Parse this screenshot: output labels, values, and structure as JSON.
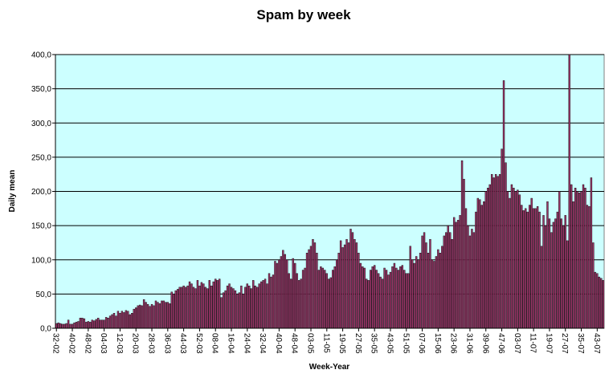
{
  "chart_data": {
    "type": "bar",
    "title": "Spam by week",
    "xlabel": "Week-Year",
    "ylabel": "Daily mean",
    "categories": [
      "32-02",
      null,
      null,
      null,
      null,
      null,
      null,
      null,
      "40-02",
      null,
      null,
      null,
      null,
      null,
      null,
      null,
      "48-02",
      null,
      null,
      null,
      null,
      null,
      null,
      null,
      "04-03",
      null,
      null,
      null,
      null,
      null,
      null,
      null,
      "12-03",
      null,
      null,
      null,
      null,
      null,
      null,
      null,
      "20-03",
      null,
      null,
      null,
      null,
      null,
      null,
      null,
      "28-03",
      null,
      null,
      null,
      null,
      null,
      null,
      null,
      "36-03",
      null,
      null,
      null,
      null,
      null,
      null,
      null,
      "44-03",
      null,
      null,
      null,
      null,
      null,
      null,
      null,
      "52-03",
      null,
      null,
      null,
      null,
      null,
      null,
      null,
      "08-04",
      null,
      null,
      null,
      null,
      null,
      null,
      null,
      "16-04",
      null,
      null,
      null,
      null,
      null,
      null,
      null,
      "24-04",
      null,
      null,
      null,
      null,
      null,
      null,
      null,
      "32-04",
      null,
      null,
      null,
      null,
      null,
      null,
      null,
      "40-04",
      null,
      null,
      null,
      null,
      null,
      null,
      null,
      "48-04",
      null,
      null,
      null,
      null,
      null,
      null,
      null,
      "03-05",
      null,
      null,
      null,
      null,
      null,
      null,
      null,
      "11-05",
      null,
      null,
      null,
      null,
      null,
      null,
      null,
      "19-05",
      null,
      null,
      null,
      null,
      null,
      null,
      null,
      "27-05",
      null,
      null,
      null,
      null,
      null,
      null,
      null,
      "35-05",
      null,
      null,
      null,
      null,
      null,
      null,
      null,
      "43-05",
      null,
      null,
      null,
      null,
      null,
      null,
      null,
      "51-05",
      null,
      null,
      null,
      null,
      null,
      null,
      null,
      "07-06",
      null,
      null,
      null,
      null,
      null,
      null,
      null,
      "15-06",
      null,
      null,
      null,
      null,
      null,
      null,
      null,
      "23-06",
      null,
      null,
      null,
      null,
      null,
      null,
      null,
      "31-06",
      null,
      null,
      null,
      null,
      null,
      null,
      null,
      "39-06",
      null,
      null,
      null,
      null,
      null,
      null,
      null,
      "47-06",
      null,
      null,
      null,
      null,
      null,
      null,
      null,
      "03-07",
      null,
      null,
      null,
      null,
      null,
      null,
      null,
      "11-07",
      null,
      null,
      null,
      null,
      null,
      null,
      null,
      "19-07",
      null,
      null,
      null,
      null,
      null,
      null,
      null,
      "27-07",
      null,
      null,
      null,
      null,
      null,
      null,
      null,
      "35-07",
      null,
      null,
      null,
      null,
      null,
      null,
      null,
      "43-07",
      null,
      null,
      null
    ],
    "values": [
      7,
      8,
      7,
      6,
      6,
      7,
      12,
      6,
      6,
      8,
      9,
      10,
      15,
      15,
      14,
      9,
      10,
      9,
      12,
      11,
      13,
      15,
      12,
      12,
      12,
      16,
      15,
      18,
      20,
      22,
      18,
      25,
      22,
      25,
      23,
      26,
      25,
      20,
      22,
      28,
      30,
      33,
      34,
      33,
      42,
      38,
      35,
      32,
      35,
      33,
      40,
      38,
      36,
      40,
      40,
      38,
      38,
      36,
      53,
      50,
      55,
      57,
      60,
      60,
      62,
      60,
      62,
      68,
      65,
      60,
      58,
      70,
      62,
      67,
      65,
      60,
      58,
      70,
      62,
      68,
      72,
      70,
      72,
      45,
      52,
      55,
      62,
      65,
      60,
      58,
      55,
      50,
      52,
      62,
      50,
      60,
      65,
      62,
      58,
      70,
      62,
      60,
      65,
      68,
      70,
      72,
      65,
      80,
      75,
      78,
      98,
      95,
      100,
      105,
      114,
      108,
      100,
      80,
      72,
      102,
      95,
      80,
      70,
      72,
      85,
      88,
      110,
      115,
      120,
      130,
      125,
      110,
      85,
      90,
      88,
      85,
      80,
      72,
      74,
      85,
      90,
      100,
      110,
      128,
      118,
      122,
      130,
      125,
      145,
      140,
      130,
      125,
      110,
      95,
      90,
      88,
      72,
      70,
      85,
      90,
      92,
      85,
      80,
      75,
      72,
      88,
      85,
      78,
      82,
      90,
      95,
      88,
      85,
      90,
      92,
      85,
      80,
      80,
      120,
      100,
      95,
      105,
      100,
      110,
      135,
      140,
      125,
      110,
      130,
      100,
      98,
      105,
      115,
      110,
      120,
      135,
      140,
      150,
      140,
      130,
      162,
      155,
      158,
      165,
      245,
      218,
      175,
      150,
      135,
      145,
      140,
      170,
      190,
      188,
      180,
      185,
      200,
      205,
      210,
      225,
      220,
      225,
      222,
      225,
      262,
      362,
      242,
      200,
      190,
      210,
      205,
      200,
      202,
      195,
      180,
      172,
      175,
      170,
      180,
      190,
      175,
      175,
      178,
      170,
      120,
      165,
      150,
      185,
      160,
      140,
      155,
      160,
      170,
      200,
      160,
      150,
      165,
      128,
      400,
      210,
      185,
      205,
      200,
      198,
      200,
      210,
      205,
      180,
      178,
      220,
      125,
      82,
      80,
      75,
      73,
      70
    ],
    "color": "#993366",
    "background": "#ccffff",
    "ylim": [
      0,
      400
    ],
    "yticks": [
      {
        "value": 0,
        "label": "0,0"
      },
      {
        "value": 50,
        "label": "50,0"
      },
      {
        "value": 100,
        "label": "100,0"
      },
      {
        "value": 150,
        "label": "150,0"
      },
      {
        "value": 200,
        "label": "200,0"
      },
      {
        "value": 250,
        "label": "250,0"
      },
      {
        "value": 300,
        "label": "300,0"
      },
      {
        "value": 350,
        "label": "350,0"
      },
      {
        "value": 400,
        "label": "400,0"
      }
    ],
    "grid": true
  }
}
